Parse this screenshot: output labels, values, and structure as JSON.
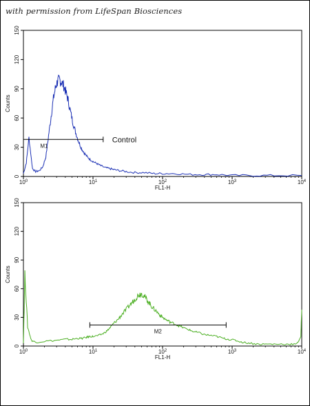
{
  "credit": "with permission from LifeSpan Biosciences",
  "chart_data": [
    {
      "type": "line",
      "name_key": "top",
      "xlabel": "FL1-H",
      "ylabel": "Counts",
      "xscale": "log",
      "xlim": [
        1,
        10000
      ],
      "ylim": [
        0,
        150
      ],
      "x_ticks": [
        "10^0",
        "10^1",
        "10^2",
        "10^3",
        "10^4"
      ],
      "y_ticks": [
        "0",
        "30",
        "60",
        "90",
        "120",
        "150"
      ],
      "color": "#1a2fb4",
      "gate": {
        "label": "M1",
        "x_range": [
          1,
          14
        ],
        "y": 38
      },
      "annotation": "Control",
      "series": [
        {
          "x": [
            1.0,
            1.1,
            1.2,
            1.35,
            1.5,
            1.7,
            1.9,
            2.1,
            2.3,
            2.5,
            2.7,
            2.9,
            3.1,
            3.3,
            3.5,
            3.8,
            4.1,
            4.4,
            4.8,
            5.2,
            5.7,
            6.2,
            6.8,
            7.5,
            8.3,
            9.2,
            10.2,
            11.5,
            13,
            15,
            17.5,
            20,
            24,
            30,
            40,
            55,
            75,
            100,
            150,
            250,
            400,
            600,
            1000,
            2000,
            4000,
            10000
          ],
          "y": [
            3,
            14,
            40,
            8,
            5,
            6,
            10,
            20,
            42,
            62,
            80,
            92,
            98,
            99,
            97,
            93,
            86,
            78,
            65,
            54,
            44,
            36,
            29,
            24,
            20,
            17,
            15,
            13,
            11,
            9,
            8,
            7,
            6,
            5,
            4,
            4,
            3,
            3,
            3,
            2,
            2,
            2,
            1,
            1,
            1,
            1
          ]
        }
      ]
    },
    {
      "type": "line",
      "name_key": "bottom",
      "xlabel": "FL1-H",
      "ylabel": "Counts",
      "xscale": "log",
      "xlim": [
        1,
        10000
      ],
      "ylim": [
        0,
        150
      ],
      "x_ticks": [
        "10^0",
        "10^1",
        "10^2",
        "10^3",
        "10^4"
      ],
      "y_ticks": [
        "0",
        "30",
        "60",
        "90",
        "120",
        "150"
      ],
      "color": "#4caf23",
      "gate": {
        "label": "M2",
        "x_range": [
          9,
          820
        ],
        "y": 22
      },
      "series": [
        {
          "x": [
            1.0,
            1.05,
            1.15,
            1.3,
            1.5,
            2,
            3,
            4,
            5,
            6,
            7,
            8,
            9,
            10,
            12,
            14,
            16,
            18,
            20,
            23,
            26,
            30,
            34,
            38,
            42,
            46,
            50,
            55,
            60,
            66,
            72,
            80,
            90,
            100,
            115,
            130,
            150,
            175,
            200,
            240,
            280,
            330,
            400,
            500,
            600,
            750,
            900,
            1100,
            1400,
            1800,
            2400,
            3200,
            4500,
            6500,
            8500,
            9700,
            10000
          ],
          "y": [
            4,
            75,
            20,
            6,
            4,
            5,
            6,
            7,
            7,
            8,
            8,
            9,
            10,
            10,
            11,
            13,
            16,
            20,
            24,
            28,
            33,
            38,
            43,
            47,
            51,
            54,
            55,
            52,
            48,
            44,
            40,
            37,
            33,
            30,
            27,
            25,
            23,
            21,
            19,
            17,
            15,
            14,
            12,
            11,
            10,
            8,
            7,
            6,
            4,
            3,
            2,
            2,
            2,
            2,
            2,
            10,
            38
          ]
        }
      ]
    }
  ]
}
